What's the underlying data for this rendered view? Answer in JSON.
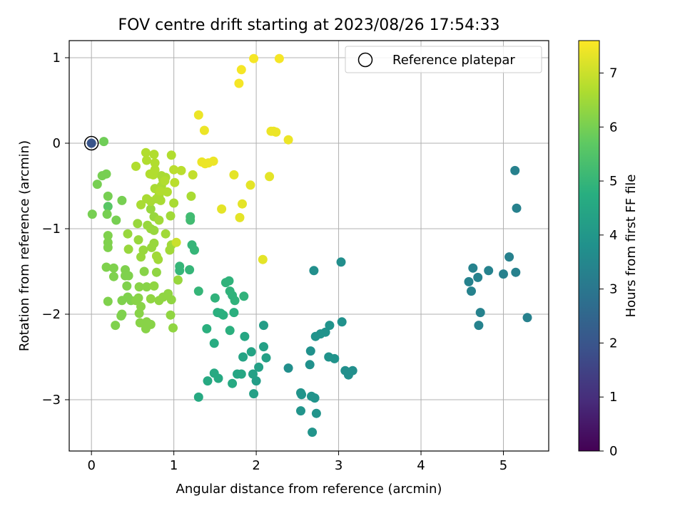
{
  "chart_data": {
    "type": "scatter",
    "title": "FOV centre drift starting at 2023/08/26 17:54:33",
    "xlabel": "Angular distance from reference (arcmin)",
    "ylabel": "Rotation from reference (arcmin)",
    "xlim": [
      -0.27,
      5.55
    ],
    "ylim": [
      -3.6,
      1.2
    ],
    "xticks": [
      0,
      1,
      2,
      3,
      4,
      5
    ],
    "xtick_labels": [
      "0",
      "1",
      "2",
      "3",
      "4",
      "5"
    ],
    "yticks": [
      -3,
      -2,
      -1,
      0,
      1
    ],
    "ytick_labels": [
      "−3",
      "−2",
      "−1",
      "0",
      "1"
    ],
    "grid": true,
    "legend": {
      "placement": "top-right",
      "entries": [
        "Reference platepar"
      ]
    },
    "colorbar": {
      "label": "Hours from first FF file",
      "colormap": "viridis",
      "range": [
        0,
        7.6
      ],
      "ticks": [
        0,
        1,
        2,
        3,
        4,
        5,
        6,
        7
      ],
      "tick_labels": [
        "0",
        "1",
        "2",
        "3",
        "4",
        "5",
        "6",
        "7"
      ]
    },
    "reference_point": {
      "x": 0,
      "y": 0,
      "h": 2.0
    },
    "series": [
      {
        "points": [
          [
            5.14,
            -0.32,
            3.3
          ],
          [
            5.16,
            -0.76,
            3.3
          ],
          [
            5.07,
            -1.33,
            3.3
          ],
          [
            5.0,
            -1.53,
            3.3
          ],
          [
            5.15,
            -1.51,
            3.3
          ],
          [
            5.29,
            -2.04,
            3.3
          ],
          [
            4.63,
            -1.46,
            3.35
          ],
          [
            4.69,
            -1.57,
            3.35
          ],
          [
            4.82,
            -1.49,
            3.35
          ],
          [
            4.58,
            -1.62,
            3.35
          ],
          [
            4.61,
            -1.73,
            3.35
          ],
          [
            4.72,
            -1.98,
            3.35
          ],
          [
            4.7,
            -2.13,
            3.35
          ]
        ]
      },
      {
        "points": [
          [
            2.39,
            -2.63,
            3.75
          ],
          [
            2.65,
            -2.59,
            3.8
          ],
          [
            2.66,
            -2.43,
            3.8
          ],
          [
            2.7,
            -1.49,
            3.75
          ],
          [
            3.03,
            -1.39,
            3.7
          ],
          [
            3.04,
            -2.09,
            3.8
          ],
          [
            2.89,
            -2.13,
            3.85
          ],
          [
            2.84,
            -2.21,
            3.85
          ],
          [
            2.78,
            -2.23,
            3.85
          ],
          [
            2.72,
            -2.26,
            3.85
          ],
          [
            2.88,
            -2.5,
            3.85
          ],
          [
            2.95,
            -2.52,
            3.85
          ],
          [
            3.08,
            -2.66,
            3.75
          ],
          [
            3.17,
            -2.66,
            3.75
          ],
          [
            3.12,
            -2.71,
            3.75
          ],
          [
            2.54,
            -2.92,
            3.9
          ],
          [
            2.55,
            -2.94,
            3.9
          ],
          [
            2.67,
            -2.96,
            3.9
          ],
          [
            2.71,
            -2.98,
            3.9
          ],
          [
            2.54,
            -3.13,
            3.9
          ],
          [
            2.73,
            -3.16,
            3.9
          ],
          [
            2.68,
            -3.38,
            3.9
          ],
          [
            2.0,
            -2.78,
            4.2
          ],
          [
            2.09,
            -2.38,
            4.3
          ],
          [
            2.12,
            -2.51,
            4.3
          ],
          [
            2.09,
            -2.13,
            4.2
          ],
          [
            2.03,
            -2.62,
            4.3
          ],
          [
            1.96,
            -2.7,
            4.3
          ],
          [
            1.97,
            -2.93,
            4.3
          ],
          [
            1.94,
            -2.44,
            4.4
          ],
          [
            1.84,
            -2.5,
            4.4
          ],
          [
            1.86,
            -2.26,
            4.5
          ],
          [
            1.77,
            -2.7,
            4.5
          ],
          [
            1.82,
            -2.7,
            4.5
          ],
          [
            1.71,
            -2.81,
            4.6
          ],
          [
            1.54,
            -2.75,
            4.6
          ],
          [
            1.49,
            -2.69,
            4.6
          ],
          [
            1.41,
            -2.78,
            4.6
          ],
          [
            1.3,
            -2.97,
            4.6
          ],
          [
            1.49,
            -2.34,
            4.7
          ],
          [
            1.4,
            -2.17,
            4.8
          ],
          [
            1.68,
            -2.19,
            4.8
          ],
          [
            1.53,
            -1.98,
            4.8
          ],
          [
            1.6,
            -2.01,
            4.8
          ],
          [
            1.73,
            -1.98,
            4.8
          ],
          [
            1.57,
            -1.99,
            4.8
          ],
          [
            1.5,
            -1.81,
            4.9
          ],
          [
            1.68,
            -1.73,
            4.9
          ],
          [
            1.71,
            -1.78,
            4.9
          ],
          [
            1.74,
            -1.84,
            4.9
          ],
          [
            1.85,
            -1.79,
            4.9
          ],
          [
            1.63,
            -1.63,
            4.9
          ],
          [
            1.67,
            -1.61,
            4.9
          ],
          [
            1.3,
            -1.73,
            5.0
          ],
          [
            1.19,
            -1.48,
            5.0
          ],
          [
            1.22,
            -1.19,
            5.0
          ],
          [
            1.25,
            -1.25,
            5.0
          ],
          [
            1.07,
            -1.44,
            5.0
          ],
          [
            1.07,
            -1.49,
            5.0
          ],
          [
            1.2,
            -0.86,
            5.2
          ],
          [
            1.2,
            -0.9,
            5.2
          ],
          [
            0.2,
            -0.74,
            5.6
          ]
        ]
      },
      {
        "points": [
          [
            0.15,
            0.02,
            5.9
          ],
          [
            0.13,
            -0.38,
            6.0
          ],
          [
            0.18,
            -0.36,
            6.0
          ],
          [
            0.07,
            -0.48,
            6.0
          ],
          [
            0.01,
            -0.83,
            6.0
          ],
          [
            0.2,
            -0.62,
            6.0
          ],
          [
            0.19,
            -0.83,
            6.0
          ],
          [
            0.3,
            -0.9,
            6.0
          ],
          [
            0.37,
            -0.67,
            6.0
          ],
          [
            0.2,
            -1.08,
            6.1
          ],
          [
            0.2,
            -1.16,
            6.1
          ],
          [
            0.2,
            -1.22,
            6.1
          ],
          [
            0.18,
            -1.45,
            6.1
          ],
          [
            0.27,
            -1.46,
            6.1
          ],
          [
            0.27,
            -1.56,
            6.1
          ],
          [
            0.41,
            -1.48,
            6.1
          ],
          [
            0.45,
            -1.55,
            6.1
          ],
          [
            0.41,
            -1.55,
            6.1
          ],
          [
            0.43,
            -1.67,
            6.1
          ],
          [
            0.44,
            -1.8,
            6.1
          ],
          [
            0.37,
            -1.84,
            6.1
          ],
          [
            0.48,
            -1.84,
            6.1
          ],
          [
            0.37,
            -2.0,
            6.1
          ],
          [
            0.36,
            -2.02,
            6.1
          ],
          [
            0.29,
            -2.13,
            6.1
          ],
          [
            0.2,
            -1.85,
            6.1
          ],
          [
            0.54,
            -1.84,
            6.2
          ],
          [
            0.57,
            -1.81,
            6.2
          ],
          [
            0.6,
            -1.91,
            6.2
          ],
          [
            0.58,
            -1.99,
            6.2
          ],
          [
            0.59,
            -2.1,
            6.2
          ],
          [
            0.67,
            -2.09,
            6.2
          ],
          [
            0.66,
            -2.17,
            6.2
          ],
          [
            0.72,
            -2.12,
            6.2
          ],
          [
            0.67,
            -1.68,
            6.2
          ],
          [
            0.58,
            -1.68,
            6.2
          ],
          [
            0.64,
            -1.5,
            6.2
          ],
          [
            0.72,
            -1.82,
            6.3
          ],
          [
            0.76,
            -1.67,
            6.3
          ],
          [
            0.82,
            -1.84,
            6.3
          ],
          [
            0.87,
            -1.8,
            6.3
          ],
          [
            0.97,
            -1.83,
            6.3
          ],
          [
            0.79,
            -1.51,
            6.3
          ],
          [
            0.93,
            -1.76,
            6.3
          ],
          [
            0.96,
            -2.01,
            6.3
          ],
          [
            0.99,
            -2.16,
            6.3
          ],
          [
            1.05,
            -1.6,
            6.4
          ],
          [
            0.68,
            -0.96,
            6.4
          ],
          [
            0.72,
            -1.0,
            6.4
          ],
          [
            0.76,
            -1.02,
            6.4
          ],
          [
            0.72,
            -0.77,
            6.4
          ],
          [
            0.76,
            -0.86,
            6.4
          ],
          [
            0.56,
            -0.94,
            6.4
          ],
          [
            0.44,
            -1.06,
            6.4
          ],
          [
            0.45,
            -1.24,
            6.4
          ],
          [
            0.57,
            -1.13,
            6.4
          ],
          [
            0.63,
            -1.25,
            6.4
          ],
          [
            0.6,
            -1.33,
            6.4
          ],
          [
            0.76,
            -1.17,
            6.4
          ],
          [
            0.73,
            -1.22,
            6.4
          ],
          [
            0.79,
            -1.32,
            6.5
          ],
          [
            0.81,
            -1.36,
            6.5
          ],
          [
            0.97,
            -1.19,
            6.5
          ],
          [
            0.95,
            -1.25,
            6.5
          ],
          [
            0.9,
            -1.06,
            6.5
          ],
          [
            0.82,
            -0.9,
            6.5
          ],
          [
            0.96,
            -0.85,
            6.5
          ],
          [
            1.0,
            -0.7,
            6.6
          ],
          [
            0.82,
            -0.61,
            6.6
          ],
          [
            0.79,
            -0.65,
            6.6
          ],
          [
            0.84,
            -0.67,
            6.6
          ],
          [
            0.72,
            -0.68,
            6.6
          ],
          [
            0.67,
            -0.65,
            6.6
          ],
          [
            0.6,
            -0.72,
            6.6
          ],
          [
            0.77,
            -0.53,
            6.6
          ],
          [
            0.85,
            -0.5,
            6.6
          ],
          [
            0.87,
            -0.43,
            6.6
          ],
          [
            0.9,
            -0.4,
            6.6
          ],
          [
            0.85,
            -0.38,
            6.6
          ],
          [
            0.71,
            -0.36,
            6.7
          ],
          [
            0.75,
            -0.37,
            6.7
          ],
          [
            0.77,
            -0.31,
            6.7
          ],
          [
            0.77,
            -0.23,
            6.7
          ],
          [
            0.66,
            -0.11,
            6.7
          ],
          [
            0.67,
            -0.2,
            6.7
          ],
          [
            0.76,
            -0.13,
            6.7
          ],
          [
            0.97,
            -0.14,
            6.7
          ],
          [
            0.54,
            -0.27,
            6.7
          ],
          [
            0.89,
            -0.44,
            6.7
          ],
          [
            0.83,
            -0.56,
            6.7
          ],
          [
            0.92,
            -0.57,
            6.7
          ],
          [
            1.0,
            -0.31,
            6.8
          ],
          [
            1.09,
            -0.32,
            6.8
          ],
          [
            1.01,
            -0.46,
            6.8
          ],
          [
            1.03,
            -1.16,
            7.0
          ],
          [
            1.21,
            -0.62,
            6.6
          ],
          [
            1.23,
            -0.37,
            6.9
          ]
        ]
      },
      {
        "points": [
          [
            1.3,
            0.33,
            7.4
          ],
          [
            1.37,
            0.15,
            7.4
          ],
          [
            1.34,
            -0.22,
            7.4
          ],
          [
            1.38,
            -0.24,
            7.4
          ],
          [
            1.42,
            -0.23,
            7.4
          ],
          [
            1.48,
            -0.21,
            7.4
          ],
          [
            1.58,
            -0.77,
            7.3
          ],
          [
            1.73,
            -0.37,
            7.3
          ],
          [
            1.8,
            -0.87,
            7.3
          ],
          [
            1.83,
            -0.71,
            7.3
          ],
          [
            1.93,
            -0.49,
            7.3
          ],
          [
            1.79,
            0.7,
            7.5
          ],
          [
            1.82,
            0.86,
            7.5
          ],
          [
            1.97,
            0.99,
            7.5
          ],
          [
            2.28,
            0.99,
            7.5
          ],
          [
            2.18,
            0.14,
            7.4
          ],
          [
            2.21,
            0.14,
            7.4
          ],
          [
            2.24,
            0.13,
            7.4
          ],
          [
            2.39,
            0.04,
            7.4
          ],
          [
            2.16,
            -0.39,
            7.3
          ],
          [
            2.08,
            -1.36,
            7.3
          ]
        ]
      }
    ]
  }
}
